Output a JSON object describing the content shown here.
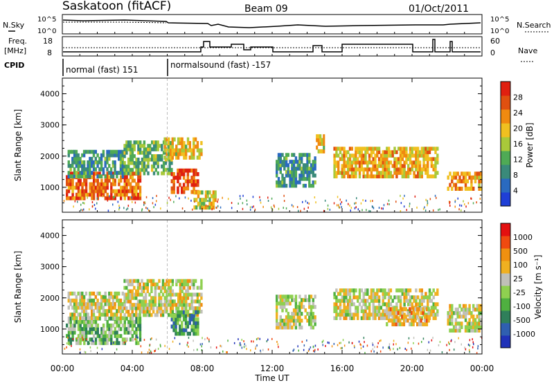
{
  "header": {
    "station": "Saskatoon (fitACF)",
    "beam": "Beam 09",
    "date": "01/Oct/2011"
  },
  "top_panels": {
    "nsky_label": "N.Sky",
    "nsky_ticks": [
      "10^5",
      "10^0"
    ],
    "nsearch_label": "N.Search",
    "nsearch_ticks": [
      "10^5",
      "10^0"
    ],
    "freq_label": "Freq.",
    "freq_unit": "[MHz]",
    "freq_ticks": [
      "18",
      "8"
    ],
    "nave_label": "Nave",
    "nave_ticks": [
      "60",
      "0"
    ],
    "cpid_label": "CPID",
    "cpid_segments": [
      {
        "start_hour": 0,
        "label": "normal (fast) 151"
      },
      {
        "start_hour": 6,
        "label": "normalsound (fast) -157"
      }
    ]
  },
  "colors": {
    "power": [
      "#1f3fd6",
      "#2a6ac0",
      "#3a8a7a",
      "#4faa55",
      "#a9c93a",
      "#f0c020",
      "#f08a10",
      "#e05010",
      "#e02010"
    ],
    "velocity": [
      "#2032b8",
      "#2f5fb0",
      "#2f7f5a",
      "#4fb040",
      "#8fd050",
      "#c0c0b8",
      "#f0b020",
      "#f09010",
      "#f04a10",
      "#e41010"
    ]
  },
  "chart_data": [
    {
      "type": "heatmap",
      "title": "Power",
      "ylabel": "Slant Range [km]",
      "xlabel": "Time UT",
      "x_range_hours": [
        0,
        24
      ],
      "y_range_km": [
        200,
        4500
      ],
      "yticks": [
        "1000",
        "2000",
        "3000",
        "4000"
      ],
      "colorbar": {
        "label": "Power [dB]",
        "ticks": [
          "4",
          "8",
          "12",
          "16",
          "20",
          "24",
          "28"
        ]
      },
      "regions": [
        {
          "t0": 0.2,
          "t1": 4.5,
          "r0": 600,
          "r1": 1500,
          "level": 0.8
        },
        {
          "t0": 0.3,
          "t1": 3.5,
          "r0": 1300,
          "r1": 2200,
          "level": 0.3
        },
        {
          "t0": 3.5,
          "t1": 6.3,
          "r0": 1400,
          "r1": 2500,
          "level": 0.4
        },
        {
          "t0": 5.8,
          "t1": 8.0,
          "r0": 1900,
          "r1": 2600,
          "level": 0.6
        },
        {
          "t0": 6.2,
          "t1": 7.8,
          "r0": 800,
          "r1": 1600,
          "level": 0.85
        },
        {
          "t0": 7.5,
          "t1": 8.8,
          "r0": 300,
          "r1": 900,
          "level": 0.55
        },
        {
          "t0": 12.2,
          "t1": 14.5,
          "r0": 1000,
          "r1": 2100,
          "level": 0.3
        },
        {
          "t0": 14.5,
          "t1": 15.0,
          "r0": 2100,
          "r1": 2700,
          "level": 0.6
        },
        {
          "t0": 15.5,
          "t1": 21.5,
          "r0": 1300,
          "r1": 2300,
          "level": 0.65
        },
        {
          "t0": 22.0,
          "t1": 24.0,
          "r0": 900,
          "r1": 1500,
          "level": 0.7
        }
      ]
    },
    {
      "type": "heatmap",
      "title": "Velocity",
      "ylabel": "Slant Range [km]",
      "xlabel": "Time UT",
      "x_range_hours": [
        0,
        24
      ],
      "y_range_km": [
        200,
        4500
      ],
      "yticks": [
        "1000",
        "2000",
        "3000",
        "4000"
      ],
      "xticks": [
        "00:00",
        "04:00",
        "08:00",
        "12:00",
        "16:00",
        "20:00",
        "00:00"
      ],
      "colorbar": {
        "label": "Velocity [m s⁻¹]",
        "ticks": [
          "1000",
          "500",
          "100",
          "25",
          "-25",
          "-100",
          "-500",
          "-1000"
        ]
      },
      "regions": [
        {
          "t0": 0.2,
          "t1": 4.5,
          "r0": 500,
          "r1": 1400,
          "level": 0.4
        },
        {
          "t0": 0.3,
          "t1": 3.5,
          "r0": 1300,
          "r1": 2200,
          "level": 0.55
        },
        {
          "t0": 3.5,
          "t1": 8.0,
          "r0": 1400,
          "r1": 2600,
          "level": 0.55
        },
        {
          "t0": 6.2,
          "t1": 7.8,
          "r0": 800,
          "r1": 1600,
          "level": 0.3
        },
        {
          "t0": 12.2,
          "t1": 14.5,
          "r0": 1000,
          "r1": 2100,
          "level": 0.5
        },
        {
          "t0": 15.5,
          "t1": 21.5,
          "r0": 1300,
          "r1": 2300,
          "level": 0.55
        },
        {
          "t0": 18.5,
          "t1": 21.0,
          "r0": 1100,
          "r1": 1700,
          "level": 0.65
        },
        {
          "t0": 22.0,
          "t1": 24.0,
          "r0": 900,
          "r1": 1800,
          "level": 0.55
        }
      ]
    }
  ]
}
